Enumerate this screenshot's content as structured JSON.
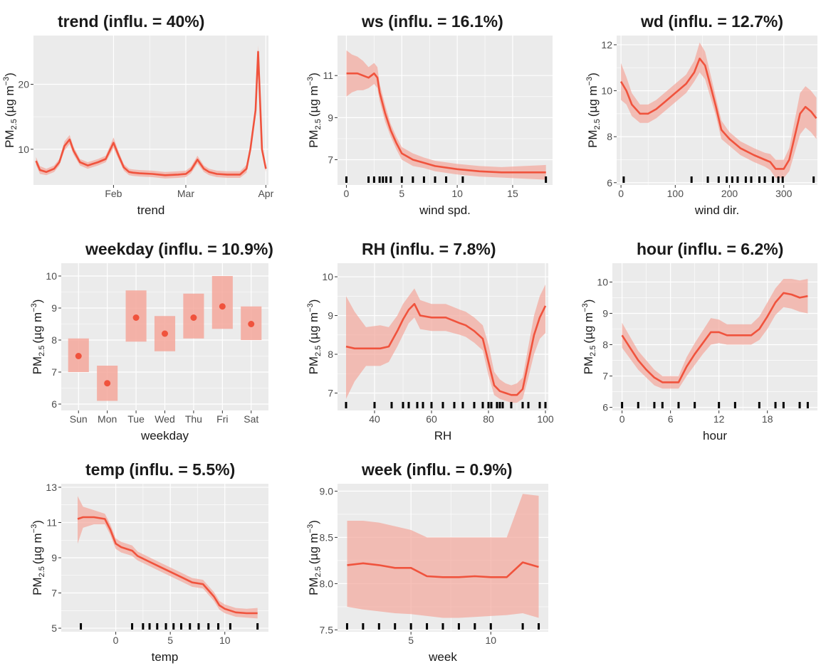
{
  "colors": {
    "panel": "#EBEBEB",
    "grid": "#FFFFFF",
    "line": "#F0533D",
    "band": "#F4A79B",
    "rug": "#000000",
    "text": "#1A1A1A",
    "tick_text": "#4D4D4D"
  },
  "ylabel_main": "PM",
  "ylabel_sub": "2.5",
  "ylabel_unit": "(µg m",
  "ylabel_exp": "−3",
  "ylabel_close": ")",
  "chart_data": [
    {
      "id": "trend",
      "type": "line",
      "title_bold": "trend",
      "title_rest": " (influ. = 40%)",
      "xlabel": "trend",
      "xlim": [
        0,
        91
      ],
      "ylim": [
        4.5,
        27.5
      ],
      "xticks": [
        {
          "v": 31,
          "label": "Feb"
        },
        {
          "v": 59,
          "label": "Mar"
        },
        {
          "v": 90,
          "label": "Apr"
        }
      ],
      "yticks": [
        {
          "v": 10,
          "label": "10"
        },
        {
          "v": 20,
          "label": "20"
        }
      ],
      "x": [
        1,
        2.5,
        5,
        8,
        10,
        12,
        14,
        15.5,
        18,
        21,
        25,
        28,
        31,
        33,
        35,
        37,
        38.5,
        41,
        46,
        51,
        56,
        59,
        61,
        63.5,
        66,
        68,
        71,
        75,
        80,
        82.5,
        84,
        86,
        87,
        88.5,
        90
      ],
      "y": [
        8.2,
        6.8,
        6.5,
        7,
        8,
        10.5,
        11.5,
        9.8,
        8,
        7.5,
        8,
        8.5,
        11,
        9,
        7.2,
        6.5,
        6.4,
        6.3,
        6.2,
        6,
        6.1,
        6.2,
        6.8,
        8.4,
        7,
        6.5,
        6.2,
        6.1,
        6.1,
        7,
        10,
        16,
        25,
        10,
        7
      ],
      "lower": [
        7.6,
        6.2,
        6.0,
        6.5,
        7.5,
        9.8,
        10.8,
        9.2,
        7.5,
        7.0,
        7.5,
        8.0,
        10.2,
        8.4,
        6.7,
        6.0,
        5.9,
        5.8,
        5.7,
        5.5,
        5.6,
        5.7,
        6.3,
        7.8,
        6.5,
        6.0,
        5.7,
        5.6,
        5.6,
        6.4,
        9.4,
        15.2,
        24.0,
        9.4,
        6.5
      ],
      "upper": [
        8.8,
        7.4,
        7.0,
        7.5,
        8.5,
        11.2,
        12.2,
        10.4,
        8.5,
        8.0,
        8.5,
        9.0,
        11.8,
        9.6,
        7.7,
        7.0,
        6.9,
        6.8,
        6.7,
        6.5,
        6.6,
        6.7,
        7.3,
        9.0,
        7.5,
        7.0,
        6.7,
        6.6,
        6.6,
        7.6,
        10.6,
        16.8,
        26.0,
        10.6,
        7.5
      ],
      "rug": []
    },
    {
      "id": "ws",
      "type": "line",
      "title_bold": "ws",
      "title_rest": " (influ. = 16.1%)",
      "xlabel": "wind spd.",
      "xlim": [
        -0.8,
        18.6
      ],
      "ylim": [
        5.8,
        12.9
      ],
      "xticks": [
        {
          "v": 0,
          "label": "0"
        },
        {
          "v": 5,
          "label": "5"
        },
        {
          "v": 10,
          "label": "10"
        },
        {
          "v": 15,
          "label": "15"
        }
      ],
      "yticks": [
        {
          "v": 7,
          "label": "7"
        },
        {
          "v": 9,
          "label": "9"
        },
        {
          "v": 11,
          "label": "11"
        }
      ],
      "x": [
        0,
        0.5,
        1,
        1.5,
        2,
        2.5,
        2.8,
        3,
        3.5,
        4,
        4.5,
        5,
        6,
        7,
        8,
        10,
        12,
        14,
        16,
        18
      ],
      "y": [
        11.1,
        11.1,
        11.1,
        11.0,
        10.9,
        11.1,
        10.9,
        10.2,
        9.2,
        8.4,
        7.8,
        7.3,
        7.0,
        6.85,
        6.7,
        6.55,
        6.45,
        6.4,
        6.4,
        6.4
      ],
      "lower": [
        10.0,
        10.2,
        10.3,
        10.3,
        10.4,
        10.6,
        10.4,
        9.8,
        8.8,
        8.1,
        7.5,
        7.0,
        6.7,
        6.6,
        6.45,
        6.3,
        6.2,
        6.15,
        6.1,
        6.05
      ],
      "upper": [
        12.2,
        12.0,
        11.9,
        11.7,
        11.4,
        11.6,
        11.4,
        10.6,
        9.6,
        8.7,
        8.1,
        7.6,
        7.3,
        7.1,
        6.95,
        6.8,
        6.7,
        6.65,
        6.7,
        6.75
      ],
      "rug": [
        0,
        2,
        2.5,
        3,
        3.3,
        3.6,
        4,
        5,
        6,
        7,
        8,
        9,
        10.5,
        18
      ]
    },
    {
      "id": "wd",
      "type": "line",
      "title_bold": "wd",
      "title_rest": " (influ. = 12.7%)",
      "xlabel": "wind dir.",
      "xlim": [
        -8,
        362
      ],
      "ylim": [
        5.9,
        12.4
      ],
      "xticks": [
        {
          "v": 0,
          "label": "0"
        },
        {
          "v": 100,
          "label": "100"
        },
        {
          "v": 200,
          "label": "200"
        },
        {
          "v": 300,
          "label": "300"
        }
      ],
      "yticks": [
        {
          "v": 6,
          "label": "6"
        },
        {
          "v": 8,
          "label": "8"
        },
        {
          "v": 10,
          "label": "10"
        },
        {
          "v": 12,
          "label": "12"
        }
      ],
      "x": [
        0,
        10,
        20,
        35,
        50,
        65,
        80,
        100,
        120,
        135,
        145,
        155,
        165,
        175,
        185,
        200,
        220,
        245,
        265,
        275,
        285,
        300,
        310,
        320,
        330,
        340,
        350,
        360
      ],
      "y": [
        10.4,
        10.0,
        9.4,
        9.0,
        9.0,
        9.2,
        9.5,
        9.9,
        10.3,
        10.8,
        11.4,
        11.1,
        10.2,
        9.3,
        8.3,
        7.9,
        7.5,
        7.2,
        7.0,
        6.9,
        6.6,
        6.6,
        7.0,
        8.0,
        9.0,
        9.3,
        9.1,
        8.8
      ],
      "lower": [
        9.6,
        9.4,
        8.9,
        8.6,
        8.6,
        8.8,
        9.1,
        9.5,
        9.9,
        10.4,
        10.8,
        10.5,
        9.7,
        8.9,
        7.9,
        7.6,
        7.2,
        6.9,
        6.7,
        6.55,
        6.2,
        6.2,
        6.5,
        7.3,
        8.1,
        8.4,
        8.2,
        7.9
      ],
      "upper": [
        11.2,
        10.6,
        9.9,
        9.4,
        9.4,
        9.6,
        9.9,
        10.3,
        10.7,
        11.3,
        12.1,
        11.7,
        10.7,
        9.7,
        8.7,
        8.2,
        7.8,
        7.5,
        7.3,
        7.25,
        7.0,
        7.0,
        7.5,
        8.7,
        9.9,
        10.2,
        10.0,
        9.7
      ],
      "rug": [
        5,
        130,
        160,
        180,
        195,
        205,
        215,
        230,
        240,
        255,
        265,
        280,
        290,
        298,
        355
      ]
    },
    {
      "id": "weekday",
      "type": "point-range",
      "title_bold": "weekday",
      "title_rest": " (influ. = 10.9%)",
      "xlabel": "weekday",
      "xlim": [
        0.4,
        7.6
      ],
      "ylim": [
        5.8,
        10.4
      ],
      "xticks": [
        {
          "v": 1,
          "label": "Sun"
        },
        {
          "v": 2,
          "label": "Mon"
        },
        {
          "v": 3,
          "label": "Tue"
        },
        {
          "v": 4,
          "label": "Wed"
        },
        {
          "v": 5,
          "label": "Thu"
        },
        {
          "v": 6,
          "label": "Fri"
        },
        {
          "v": 7,
          "label": "Sat"
        }
      ],
      "yticks": [
        {
          "v": 6,
          "label": "6"
        },
        {
          "v": 7,
          "label": "7"
        },
        {
          "v": 8,
          "label": "8"
        },
        {
          "v": 9,
          "label": "9"
        },
        {
          "v": 10,
          "label": "10"
        }
      ],
      "categories": [
        "Sun",
        "Mon",
        "Tue",
        "Wed",
        "Thu",
        "Fri",
        "Sat"
      ],
      "values": [
        7.5,
        6.65,
        8.7,
        8.2,
        8.7,
        9.05,
        8.5
      ],
      "lower": [
        7.0,
        6.1,
        7.95,
        7.65,
        8.05,
        8.35,
        8.0
      ],
      "upper": [
        8.05,
        7.2,
        9.55,
        8.75,
        9.45,
        10.0,
        9.05
      ]
    },
    {
      "id": "RH",
      "type": "line",
      "title_bold": "RH",
      "title_rest": " (influ. = 7.8%)",
      "xlabel": "RH",
      "xlim": [
        27,
        101
      ],
      "ylim": [
        6.55,
        10.35
      ],
      "xticks": [
        {
          "v": 40,
          "label": "40"
        },
        {
          "v": 60,
          "label": "60"
        },
        {
          "v": 80,
          "label": "80"
        },
        {
          "v": 100,
          "label": "100"
        }
      ],
      "yticks": [
        {
          "v": 7,
          "label": "7"
        },
        {
          "v": 8,
          "label": "8"
        },
        {
          "v": 9,
          "label": "9"
        },
        {
          "v": 10,
          "label": "10"
        }
      ],
      "x": [
        30,
        33,
        37,
        42,
        45,
        48,
        50,
        52,
        54,
        56,
        60,
        65,
        70,
        72,
        75,
        78,
        80,
        82,
        84,
        86,
        88,
        90,
        92,
        94,
        96,
        98,
        100
      ],
      "y": [
        8.2,
        8.15,
        8.15,
        8.15,
        8.2,
        8.6,
        8.9,
        9.15,
        9.3,
        9.0,
        8.95,
        8.95,
        8.8,
        8.75,
        8.6,
        8.4,
        7.8,
        7.2,
        7.05,
        7.0,
        6.95,
        6.95,
        7.1,
        7.8,
        8.5,
        8.95,
        9.25
      ],
      "lower": [
        6.85,
        7.3,
        7.7,
        7.7,
        7.8,
        8.2,
        8.5,
        8.8,
        8.95,
        8.65,
        8.6,
        8.6,
        8.5,
        8.45,
        8.3,
        8.1,
        7.45,
        6.95,
        6.85,
        6.8,
        6.75,
        6.75,
        6.85,
        7.4,
        8.0,
        8.4,
        8.55
      ],
      "upper": [
        9.5,
        9.1,
        8.7,
        8.75,
        8.7,
        9.0,
        9.3,
        9.5,
        9.7,
        9.4,
        9.3,
        9.3,
        9.15,
        9.1,
        8.95,
        8.75,
        8.25,
        7.55,
        7.35,
        7.25,
        7.2,
        7.25,
        7.4,
        8.2,
        9.0,
        9.5,
        9.8
      ],
      "rug": [
        30,
        40,
        46,
        50,
        52,
        55,
        57,
        60,
        64,
        68,
        71,
        75,
        78,
        80,
        81,
        83,
        84,
        85,
        88,
        92,
        94,
        98,
        100
      ]
    },
    {
      "id": "hour",
      "type": "line",
      "title_bold": "hour",
      "title_rest": " (influ. = 6.2%)",
      "xlabel": "hour",
      "xlim": [
        -1.2,
        24.2
      ],
      "ylim": [
        5.9,
        10.6
      ],
      "xticks": [
        {
          "v": 0,
          "label": "0"
        },
        {
          "v": 6,
          "label": "6"
        },
        {
          "v": 12,
          "label": "12"
        },
        {
          "v": 18,
          "label": "18"
        }
      ],
      "yticks": [
        {
          "v": 6,
          "label": "6"
        },
        {
          "v": 7,
          "label": "7"
        },
        {
          "v": 8,
          "label": "8"
        },
        {
          "v": 9,
          "label": "9"
        },
        {
          "v": 10,
          "label": "10"
        }
      ],
      "x": [
        0,
        1,
        2,
        3,
        4,
        5,
        6,
        7,
        8,
        9,
        10,
        11,
        12,
        13,
        14,
        15,
        16,
        17,
        18,
        19,
        20,
        21,
        22,
        23
      ],
      "y": [
        8.3,
        7.9,
        7.5,
        7.2,
        6.95,
        6.8,
        6.8,
        6.8,
        7.3,
        7.7,
        8.05,
        8.4,
        8.4,
        8.3,
        8.3,
        8.3,
        8.3,
        8.5,
        8.9,
        9.35,
        9.65,
        9.6,
        9.5,
        9.55
      ],
      "lower": [
        7.9,
        7.55,
        7.2,
        6.95,
        6.7,
        6.6,
        6.6,
        6.6,
        7.0,
        7.35,
        7.7,
        8.0,
        8.05,
        8.0,
        8.0,
        8.0,
        8.0,
        8.15,
        8.5,
        8.95,
        9.2,
        9.15,
        9.05,
        9.0
      ],
      "upper": [
        8.7,
        8.25,
        7.8,
        7.5,
        7.2,
        7.0,
        7.0,
        7.0,
        7.6,
        8.05,
        8.45,
        8.85,
        8.8,
        8.65,
        8.65,
        8.65,
        8.65,
        8.9,
        9.35,
        9.8,
        10.1,
        10.1,
        10.05,
        10.1
      ],
      "rug": [
        0,
        2,
        4,
        5,
        7,
        9,
        12,
        14,
        17,
        19,
        20,
        22,
        23
      ]
    },
    {
      "id": "temp",
      "type": "line",
      "title_bold": "temp",
      "title_rest": " (influ. = 5.5%)",
      "xlabel": "temp",
      "xlim": [
        -5,
        14
      ],
      "ylim": [
        4.8,
        13.2
      ],
      "xticks": [
        {
          "v": 0,
          "label": "0"
        },
        {
          "v": 5,
          "label": "5"
        },
        {
          "v": 10,
          "label": "10"
        }
      ],
      "yticks": [
        {
          "v": 5,
          "label": "5"
        },
        {
          "v": 7,
          "label": "7"
        },
        {
          "v": 9,
          "label": "9"
        },
        {
          "v": 11,
          "label": "11"
        },
        {
          "v": 13,
          "label": "13"
        }
      ],
      "x": [
        -3.5,
        -3,
        -2,
        -1,
        -0.5,
        0,
        0.5,
        1,
        1.5,
        2,
        3,
        4,
        5,
        6,
        7,
        8,
        9,
        9.5,
        10,
        11,
        12,
        13
      ],
      "y": [
        11.2,
        11.3,
        11.3,
        11.2,
        10.6,
        9.8,
        9.6,
        9.5,
        9.4,
        9.1,
        8.8,
        8.5,
        8.2,
        7.9,
        7.6,
        7.5,
        6.8,
        6.3,
        6.1,
        5.9,
        5.85,
        5.85
      ],
      "lower": [
        9.8,
        10.7,
        10.9,
        10.9,
        10.3,
        9.5,
        9.3,
        9.2,
        9.1,
        8.85,
        8.55,
        8.25,
        7.95,
        7.65,
        7.35,
        7.25,
        6.55,
        6.05,
        5.85,
        5.65,
        5.6,
        5.55
      ],
      "upper": [
        12.5,
        11.9,
        11.7,
        11.5,
        10.9,
        10.1,
        9.9,
        9.8,
        9.7,
        9.35,
        9.05,
        8.75,
        8.45,
        8.15,
        7.85,
        7.75,
        7.05,
        6.55,
        6.35,
        6.15,
        6.1,
        6.15
      ],
      "rug": [
        -3.2,
        1.5,
        2.5,
        3.1,
        3.8,
        4.6,
        5.3,
        6,
        6.8,
        7.6,
        8.5,
        9.4,
        10.5,
        13
      ]
    },
    {
      "id": "week",
      "type": "line",
      "title_bold": "week",
      "title_rest": " (influ. = 0.9%)",
      "xlabel": "week",
      "xlim": [
        0.4,
        13.6
      ],
      "ylim": [
        7.48,
        9.08
      ],
      "xticks": [
        {
          "v": 5,
          "label": "5"
        },
        {
          "v": 10,
          "label": "10"
        }
      ],
      "yticks": [
        {
          "v": 7.5,
          "label": "7.5"
        },
        {
          "v": 8.0,
          "label": "8.0"
        },
        {
          "v": 8.5,
          "label": "8.5"
        },
        {
          "v": 9.0,
          "label": "9.0"
        }
      ],
      "x": [
        1,
        2,
        3,
        4,
        5,
        6,
        7,
        8,
        9,
        10,
        11,
        12,
        13
      ],
      "y": [
        8.2,
        8.22,
        8.2,
        8.17,
        8.17,
        8.08,
        8.07,
        8.07,
        8.08,
        8.07,
        8.07,
        8.23,
        8.18
      ],
      "lower": [
        7.75,
        7.72,
        7.7,
        7.68,
        7.67,
        7.65,
        7.63,
        7.63,
        7.64,
        7.65,
        7.66,
        7.68,
        7.63
      ],
      "upper": [
        8.68,
        8.68,
        8.66,
        8.62,
        8.58,
        8.5,
        8.5,
        8.5,
        8.5,
        8.5,
        8.5,
        8.97,
        8.95
      ],
      "rug": [
        1,
        2,
        3,
        4,
        5,
        6,
        7,
        8,
        9,
        10,
        12,
        13
      ]
    }
  ]
}
